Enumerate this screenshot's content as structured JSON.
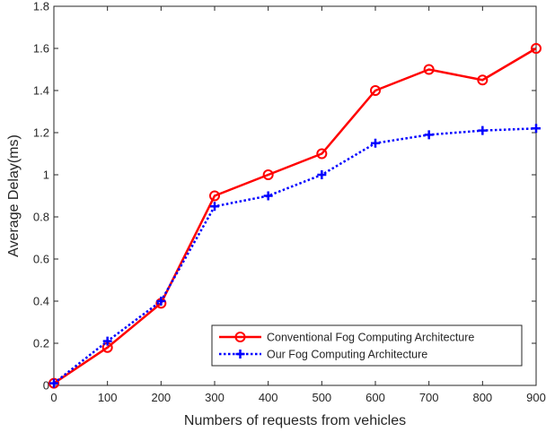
{
  "chart_data": {
    "type": "line",
    "xlabel": "Numbers of requests from vehicles",
    "ylabel": "Average Delay(ms)",
    "xlim": [
      0,
      900
    ],
    "ylim": [
      0,
      1.8
    ],
    "xticks": [
      0,
      100,
      200,
      300,
      400,
      500,
      600,
      700,
      800,
      900
    ],
    "yticks": [
      0,
      0.2,
      0.4,
      0.6,
      0.8,
      1,
      1.2,
      1.4,
      1.6,
      1.8
    ],
    "xtick_labels": [
      "0",
      "100",
      "200",
      "300",
      "400",
      "500",
      "600",
      "700",
      "800",
      "900"
    ],
    "ytick_labels": [
      "0",
      "0.2",
      "0.4",
      "0.6",
      "0.8",
      "1",
      "1.2",
      "1.4",
      "1.6",
      "1.8"
    ],
    "x": [
      0,
      100,
      200,
      300,
      400,
      500,
      600,
      700,
      800,
      900
    ],
    "grid": false,
    "legend_position": "bottom-right",
    "series": [
      {
        "name": "Conventional Fog Computing Architecture",
        "values": [
          0.01,
          0.18,
          0.39,
          0.9,
          1.0,
          1.1,
          1.4,
          1.5,
          1.45,
          1.6
        ],
        "color": "#ff0000",
        "line_style": "solid",
        "marker": "circle"
      },
      {
        "name": "Our Fog Computing Architecture",
        "values": [
          0.01,
          0.21,
          0.4,
          0.85,
          0.9,
          1.0,
          1.15,
          1.19,
          1.21,
          1.22
        ],
        "color": "#0000ff",
        "line_style": "dotted",
        "marker": "plus"
      }
    ]
  }
}
